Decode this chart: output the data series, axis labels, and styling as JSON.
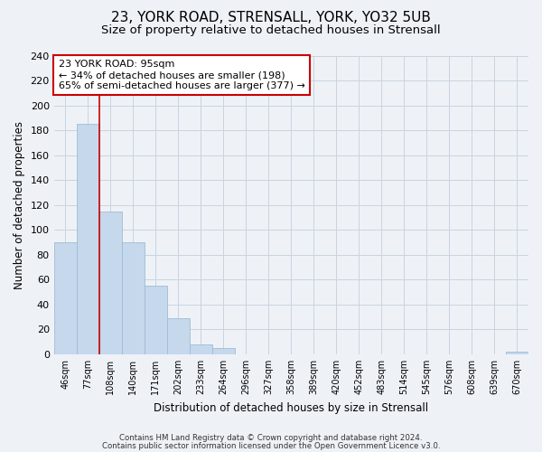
{
  "title": "23, YORK ROAD, STRENSALL, YORK, YO32 5UB",
  "subtitle": "Size of property relative to detached houses in Strensall",
  "xlabel": "Distribution of detached houses by size in Strensall",
  "ylabel": "Number of detached properties",
  "bar_labels": [
    "46sqm",
    "77sqm",
    "108sqm",
    "140sqm",
    "171sqm",
    "202sqm",
    "233sqm",
    "264sqm",
    "296sqm",
    "327sqm",
    "358sqm",
    "389sqm",
    "420sqm",
    "452sqm",
    "483sqm",
    "514sqm",
    "545sqm",
    "576sqm",
    "608sqm",
    "639sqm",
    "670sqm"
  ],
  "bar_values": [
    90,
    185,
    115,
    90,
    55,
    29,
    8,
    5,
    0,
    0,
    0,
    0,
    0,
    0,
    0,
    0,
    0,
    0,
    0,
    0,
    2
  ],
  "bar_color": "#c5d8ec",
  "bar_edge_color": "#a0bcd4",
  "vline_x_index": 1.5,
  "vline_color": "#cc0000",
  "ylim": [
    0,
    240
  ],
  "yticks": [
    0,
    20,
    40,
    60,
    80,
    100,
    120,
    140,
    160,
    180,
    200,
    220,
    240
  ],
  "annotation_title": "23 YORK ROAD: 95sqm",
  "annotation_line1": "← 34% of detached houses are smaller (198)",
  "annotation_line2": "65% of semi-detached houses are larger (377) →",
  "box_color": "#cc0000",
  "footer1": "Contains HM Land Registry data © Crown copyright and database right 2024.",
  "footer2": "Contains public sector information licensed under the Open Government Licence v3.0.",
  "background_color": "#eef2f7",
  "plot_background": "#eef2f7",
  "grid_color": "#c8d4e0",
  "title_fontsize": 11,
  "subtitle_fontsize": 9.5
}
